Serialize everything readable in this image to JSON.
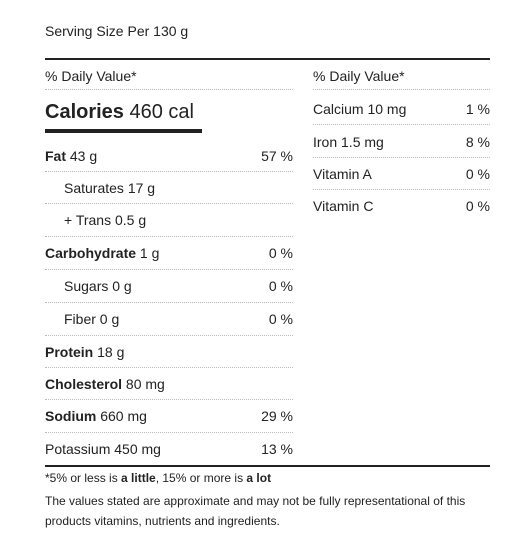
{
  "serving_size": "Serving Size Per 130 g",
  "left_header": "% Daily Value*",
  "right_header": "% Daily Value*",
  "calories": {
    "label": "Calories",
    "value": "460 cal"
  },
  "nutrients": [
    {
      "name": "Fat",
      "amount": "43 g",
      "percent": "57 %"
    },
    {
      "name": "Saturates",
      "amount": "17 g",
      "percent": ""
    },
    {
      "name": "+ Trans",
      "amount": "0.5 g",
      "percent": ""
    },
    {
      "name": "Carbohydrate",
      "amount": "1 g",
      "percent": "0 %"
    },
    {
      "name": "Sugars",
      "amount": "0 g",
      "percent": "0 %"
    },
    {
      "name": "Fiber",
      "amount": "0 g",
      "percent": "0 %"
    },
    {
      "name": "Protein",
      "amount": "18 g",
      "percent": ""
    },
    {
      "name": "Cholesterol",
      "amount": "80 mg",
      "percent": ""
    },
    {
      "name": "Sodium",
      "amount": "660 mg",
      "percent": "29 %"
    },
    {
      "name": "Potassium",
      "amount": "450 mg",
      "percent": "13 %"
    }
  ],
  "minerals": [
    {
      "name": "Calcium",
      "amount": "10 mg",
      "percent": "1 %"
    },
    {
      "name": "Iron",
      "amount": "1.5 mg",
      "percent": "8 %"
    },
    {
      "name": "Vitamin A",
      "amount": "",
      "percent": "0 %"
    },
    {
      "name": "Vitamin C",
      "amount": "",
      "percent": "0 %"
    }
  ],
  "footnote": {
    "prefix": "*5% or less is ",
    "little": "a little",
    "middle": ", 15% or more is ",
    "lot": "a lot"
  },
  "disclaimer": "The values stated are approximate and may not be fully representational of this products vitamins, nutrients and ingredients."
}
